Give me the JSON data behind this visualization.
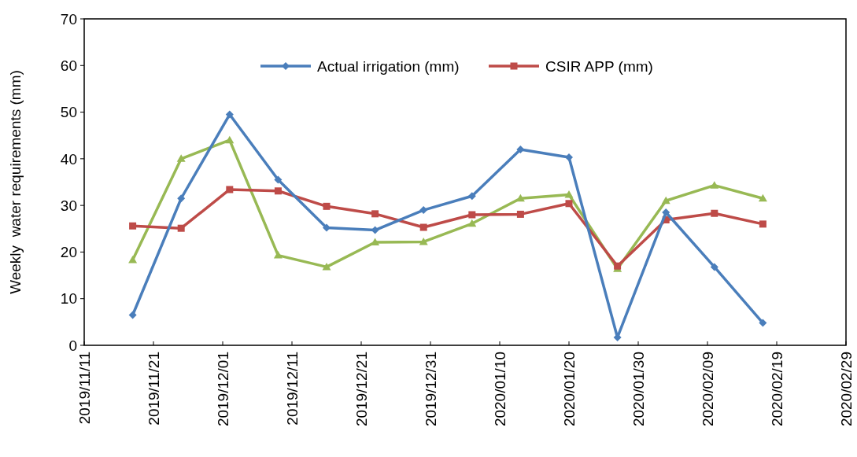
{
  "chart_data": {
    "type": "line",
    "ylabel": "Weekly  water requirements (mm)",
    "x": [
      "2019-11-18",
      "2019-11-25",
      "2019-12-02",
      "2019-12-09",
      "2019-12-16",
      "2019-12-23",
      "2019-12-30",
      "2020-01-06",
      "2020-01-13",
      "2020-01-20",
      "2020-01-27",
      "2020-02-03",
      "2020-02-10",
      "2020-02-17"
    ],
    "series": [
      {
        "name": "Actual irrigation (mm)",
        "color": "#4a7ebb",
        "marker": "diamond",
        "values": [
          6.5,
          31.5,
          49.5,
          35.5,
          25.2,
          24.7,
          29,
          32,
          42,
          40.3,
          1.7,
          28.5,
          16.8,
          4.8
        ]
      },
      {
        "name": "CSIR APP (mm)",
        "color": "#be4b48",
        "marker": "square",
        "values": [
          25.6,
          25.1,
          33.4,
          33.1,
          29.8,
          28.2,
          25.3,
          28,
          28.1,
          30.4,
          17,
          26.9,
          28.3,
          26
        ]
      },
      {
        "color": "#98b954",
        "marker": "triangle",
        "values": [
          18.3,
          40,
          44,
          19.3,
          16.8,
          22.1,
          22.2,
          26.1,
          31.5,
          32.3,
          16.4,
          31,
          34.3,
          31.5
        ]
      }
    ],
    "xlim": [
      "2019-11-11",
      "2020-02-29"
    ],
    "xticks": [
      {
        "value": "2019-11-11",
        "label": "2019/11/11"
      },
      {
        "value": "2019-11-21",
        "label": "2019/11/21"
      },
      {
        "value": "2019-12-01",
        "label": "2019/12/01"
      },
      {
        "value": "2019-12-11",
        "label": "2019/12/11"
      },
      {
        "value": "2019-12-21",
        "label": "2019/12/21"
      },
      {
        "value": "2019-12-31",
        "label": "2019/12/31"
      },
      {
        "value": "2020-01-10",
        "label": "2020/01/10"
      },
      {
        "value": "2020-01-20",
        "label": "2020/01/20"
      },
      {
        "value": "2020-01-30",
        "label": "2020/01/30"
      },
      {
        "value": "2020-02-09",
        "label": "2020/02/09"
      },
      {
        "value": "2020-02-19",
        "label": "2020/02/19"
      },
      {
        "value": "2020-02-29",
        "label": "2020/02/29"
      }
    ],
    "ylim": [
      0,
      70
    ],
    "yticks": [
      0,
      10,
      20,
      30,
      40,
      50,
      60,
      70
    ],
    "grid": false,
    "legend": "top"
  }
}
